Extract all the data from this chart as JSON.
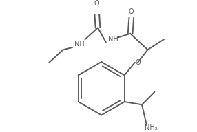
{
  "bg_color": "#ffffff",
  "line_color": "#5a5a5a",
  "text_color": "#5a5a5a",
  "line_width": 1.4,
  "font_size": 7.0,
  "fig_width": 2.86,
  "fig_height": 1.92,
  "dpi": 100,
  "xlim": [
    0,
    286
  ],
  "ylim": [
    0,
    192
  ]
}
